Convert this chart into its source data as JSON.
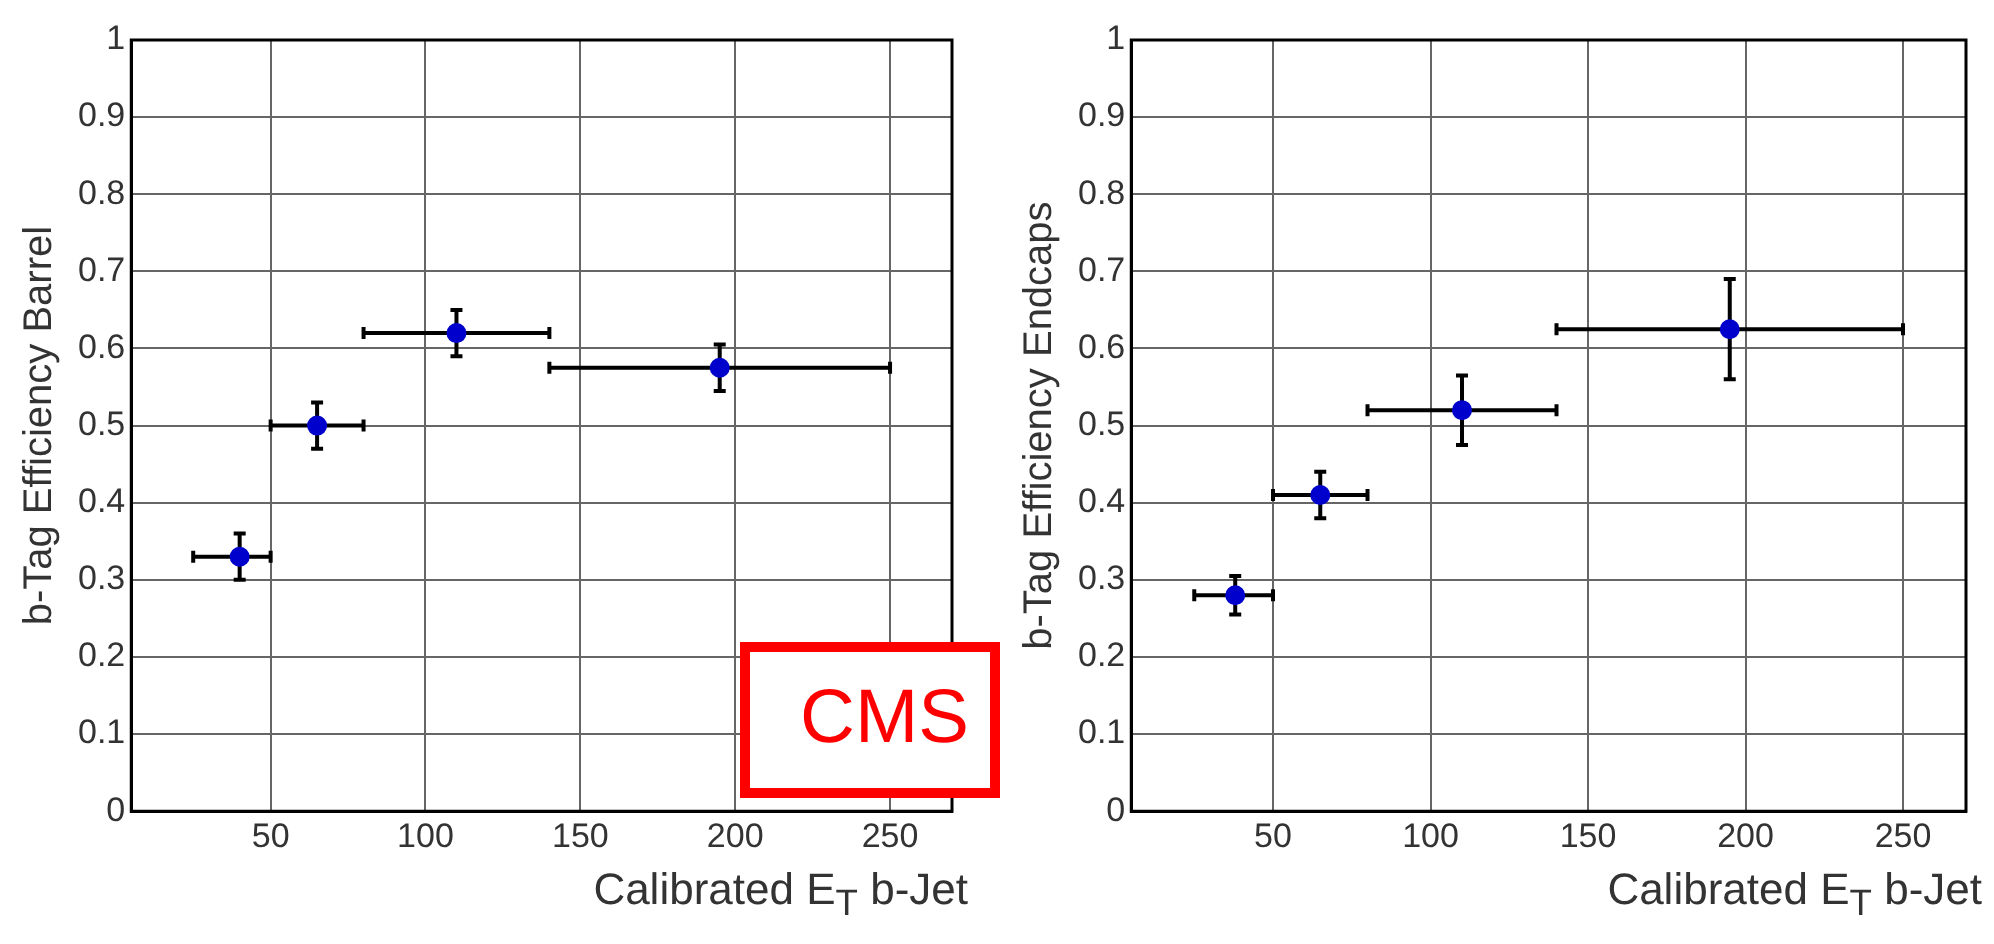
{
  "chart_data": [
    {
      "type": "scatter",
      "xlabel": "Calibrated E$_{T}$ b-Jet",
      "ylabel": "b-Tag Efficiency Barrel",
      "xlim": [
        5,
        270
      ],
      "xticks": [
        50,
        100,
        150,
        200,
        250
      ],
      "ylim": [
        0,
        1
      ],
      "yticks": [
        0,
        0.1,
        0.2,
        0.3,
        0.4,
        0.5,
        0.6,
        0.7,
        0.8,
        0.9,
        1
      ],
      "grid": true,
      "legend": false,
      "marker": "circle",
      "annotations": [
        "CMS"
      ],
      "series": [
        {
          "color": "#0000cc",
          "x": [
            40,
            65,
            110,
            195
          ],
          "values": [
            0.33,
            0.5,
            0.62,
            0.575
          ],
          "errors": [
            [
              0.3,
              0.36
            ],
            [
              0.47,
              0.53
            ],
            [
              0.59,
              0.65
            ],
            [
              0.545,
              0.605
            ]
          ],
          "xerrors": [
            [
              25,
              50
            ],
            [
              50,
              80
            ],
            [
              80,
              140
            ],
            [
              140,
              250
            ]
          ]
        }
      ]
    },
    {
      "type": "scatter",
      "xlabel": "Calibrated E$_{T}$ b-Jet",
      "ylabel": "b-Tag Efficiency Endcaps",
      "xlim": [
        5,
        270
      ],
      "xticks": [
        50,
        100,
        150,
        200,
        250
      ],
      "ylim": [
        0,
        1
      ],
      "yticks": [
        0,
        0.1,
        0.2,
        0.3,
        0.4,
        0.5,
        0.6,
        0.7,
        0.8,
        0.9,
        1
      ],
      "grid": true,
      "legend": false,
      "marker": "circle",
      "series": [
        {
          "color": "#0000cc",
          "x": [
            38,
            65,
            110,
            195
          ],
          "values": [
            0.28,
            0.41,
            0.52,
            0.625
          ],
          "errors": [
            [
              0.255,
              0.305
            ],
            [
              0.38,
              0.44
            ],
            [
              0.475,
              0.565
            ],
            [
              0.56,
              0.69
            ]
          ],
          "xerrors": [
            [
              25,
              50
            ],
            [
              50,
              80
            ],
            [
              80,
              140
            ],
            [
              140,
              250
            ]
          ]
        }
      ]
    }
  ]
}
